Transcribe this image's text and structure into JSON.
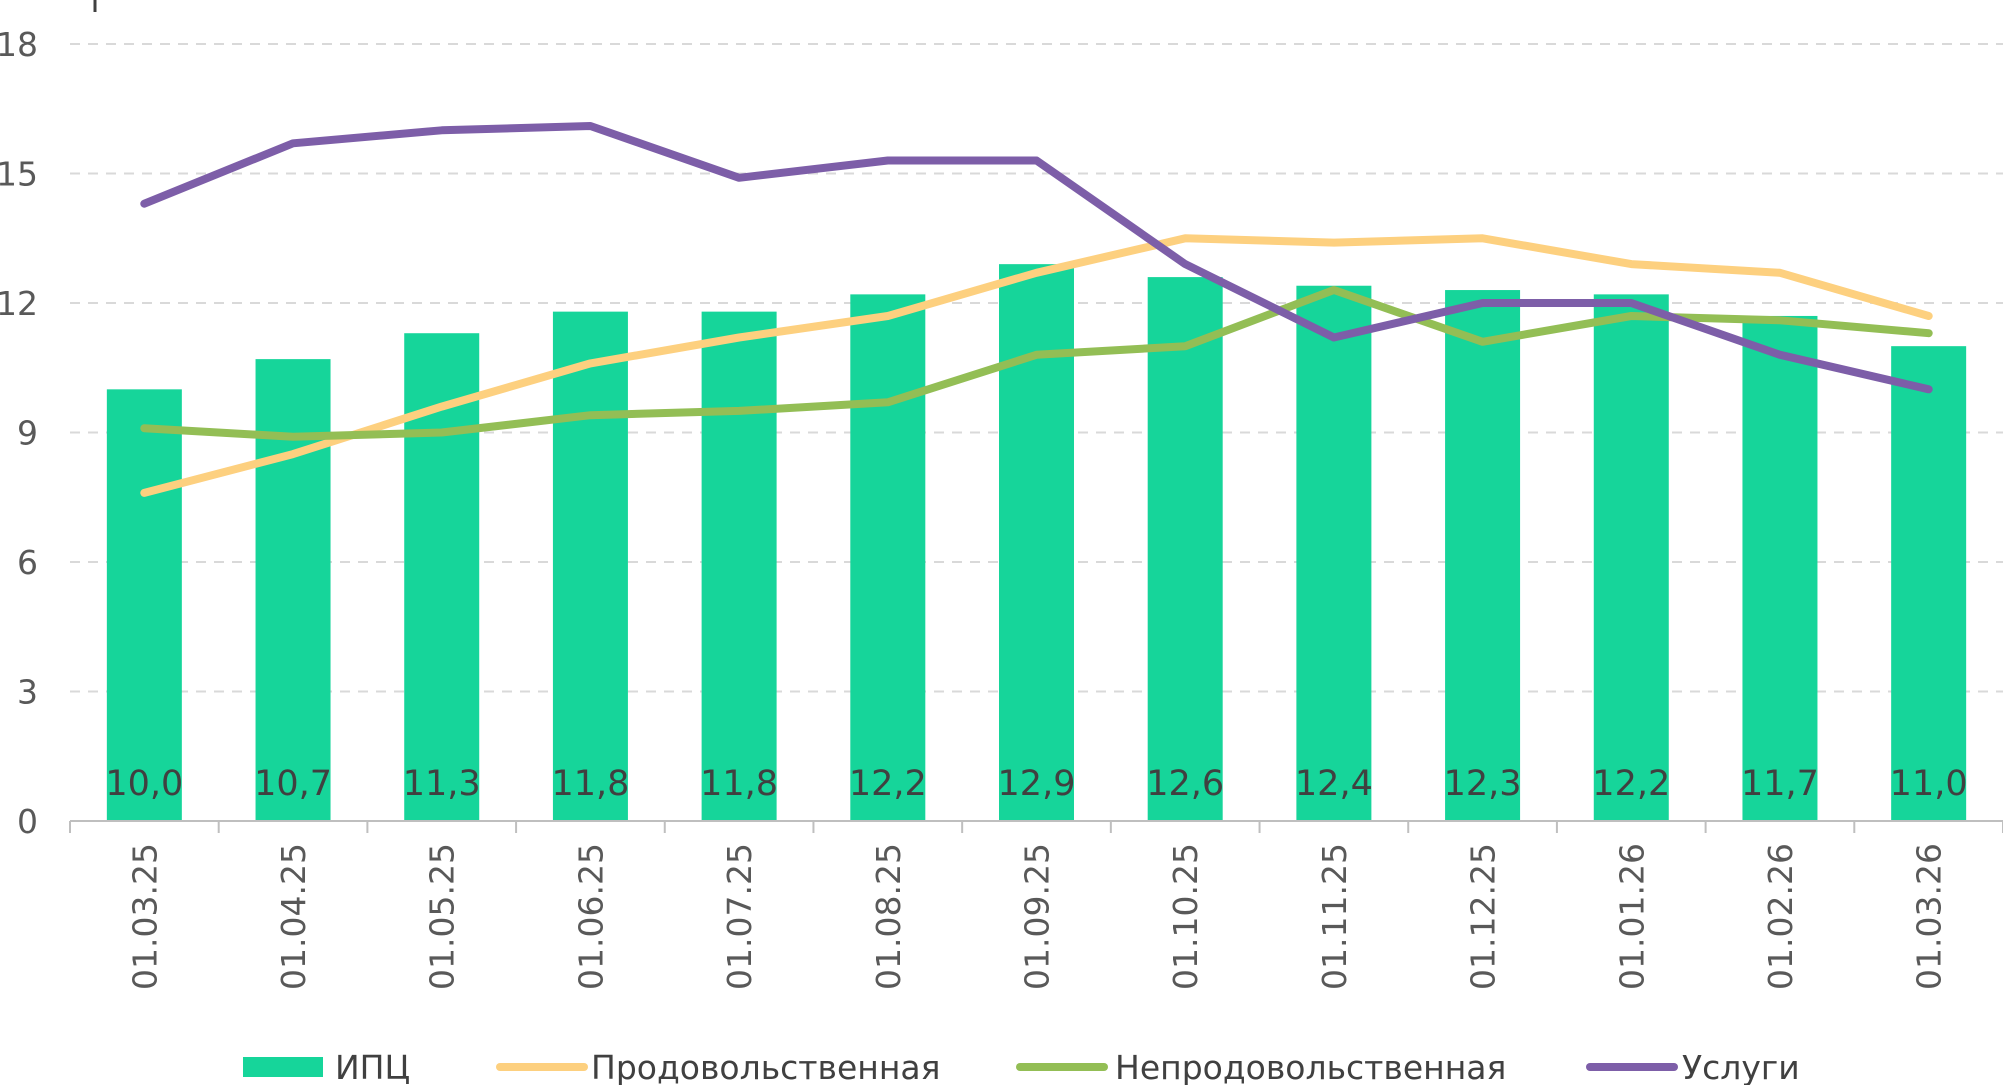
{
  "chart_data": {
    "type": "bar+line",
    "title": "",
    "xlabel": "",
    "ylabel": "",
    "ylim": [
      0,
      18
    ],
    "yticks": [
      0,
      3,
      6,
      9,
      12,
      15,
      18
    ],
    "grid": true,
    "legend_position": "bottom",
    "categories": [
      "01.03.25",
      "01.04.25",
      "01.05.25",
      "01.06.25",
      "01.07.25",
      "01.08.25",
      "01.09.25",
      "01.10.25",
      "01.11.25",
      "01.12.25",
      "01.01.26",
      "01.02.26",
      "01.03.26"
    ],
    "series": [
      {
        "name": "ИПЦ",
        "kind": "bar",
        "color": "#16d59a",
        "values": [
          10.0,
          10.7,
          11.3,
          11.8,
          11.8,
          12.2,
          12.9,
          12.6,
          12.4,
          12.3,
          12.2,
          11.7,
          11.0
        ],
        "data_labels": [
          "10,0",
          "10,7",
          "11,3",
          "11,8",
          "11,8",
          "12,2",
          "12,9",
          "12,6",
          "12,4",
          "12,3",
          "12,2",
          "11,7",
          "11,0"
        ]
      },
      {
        "name": "Продовольственная",
        "kind": "line",
        "color": "#fdd07f",
        "values": [
          7.6,
          8.5,
          9.6,
          10.6,
          11.2,
          11.7,
          12.7,
          13.5,
          13.4,
          13.5,
          12.9,
          12.7,
          11.7
        ]
      },
      {
        "name": "Непродовольственная",
        "kind": "line",
        "color": "#93be55",
        "values": [
          9.1,
          8.9,
          9.0,
          9.4,
          9.5,
          9.7,
          10.8,
          11.0,
          12.3,
          11.1,
          11.7,
          11.6,
          11.3
        ]
      },
      {
        "name": "Услуги",
        "kind": "line",
        "color": "#7d5ea8",
        "values": [
          14.3,
          15.7,
          16.0,
          16.1,
          14.9,
          15.3,
          15.3,
          12.9,
          11.2,
          12.0,
          12.0,
          10.8,
          10.0
        ]
      }
    ]
  }
}
